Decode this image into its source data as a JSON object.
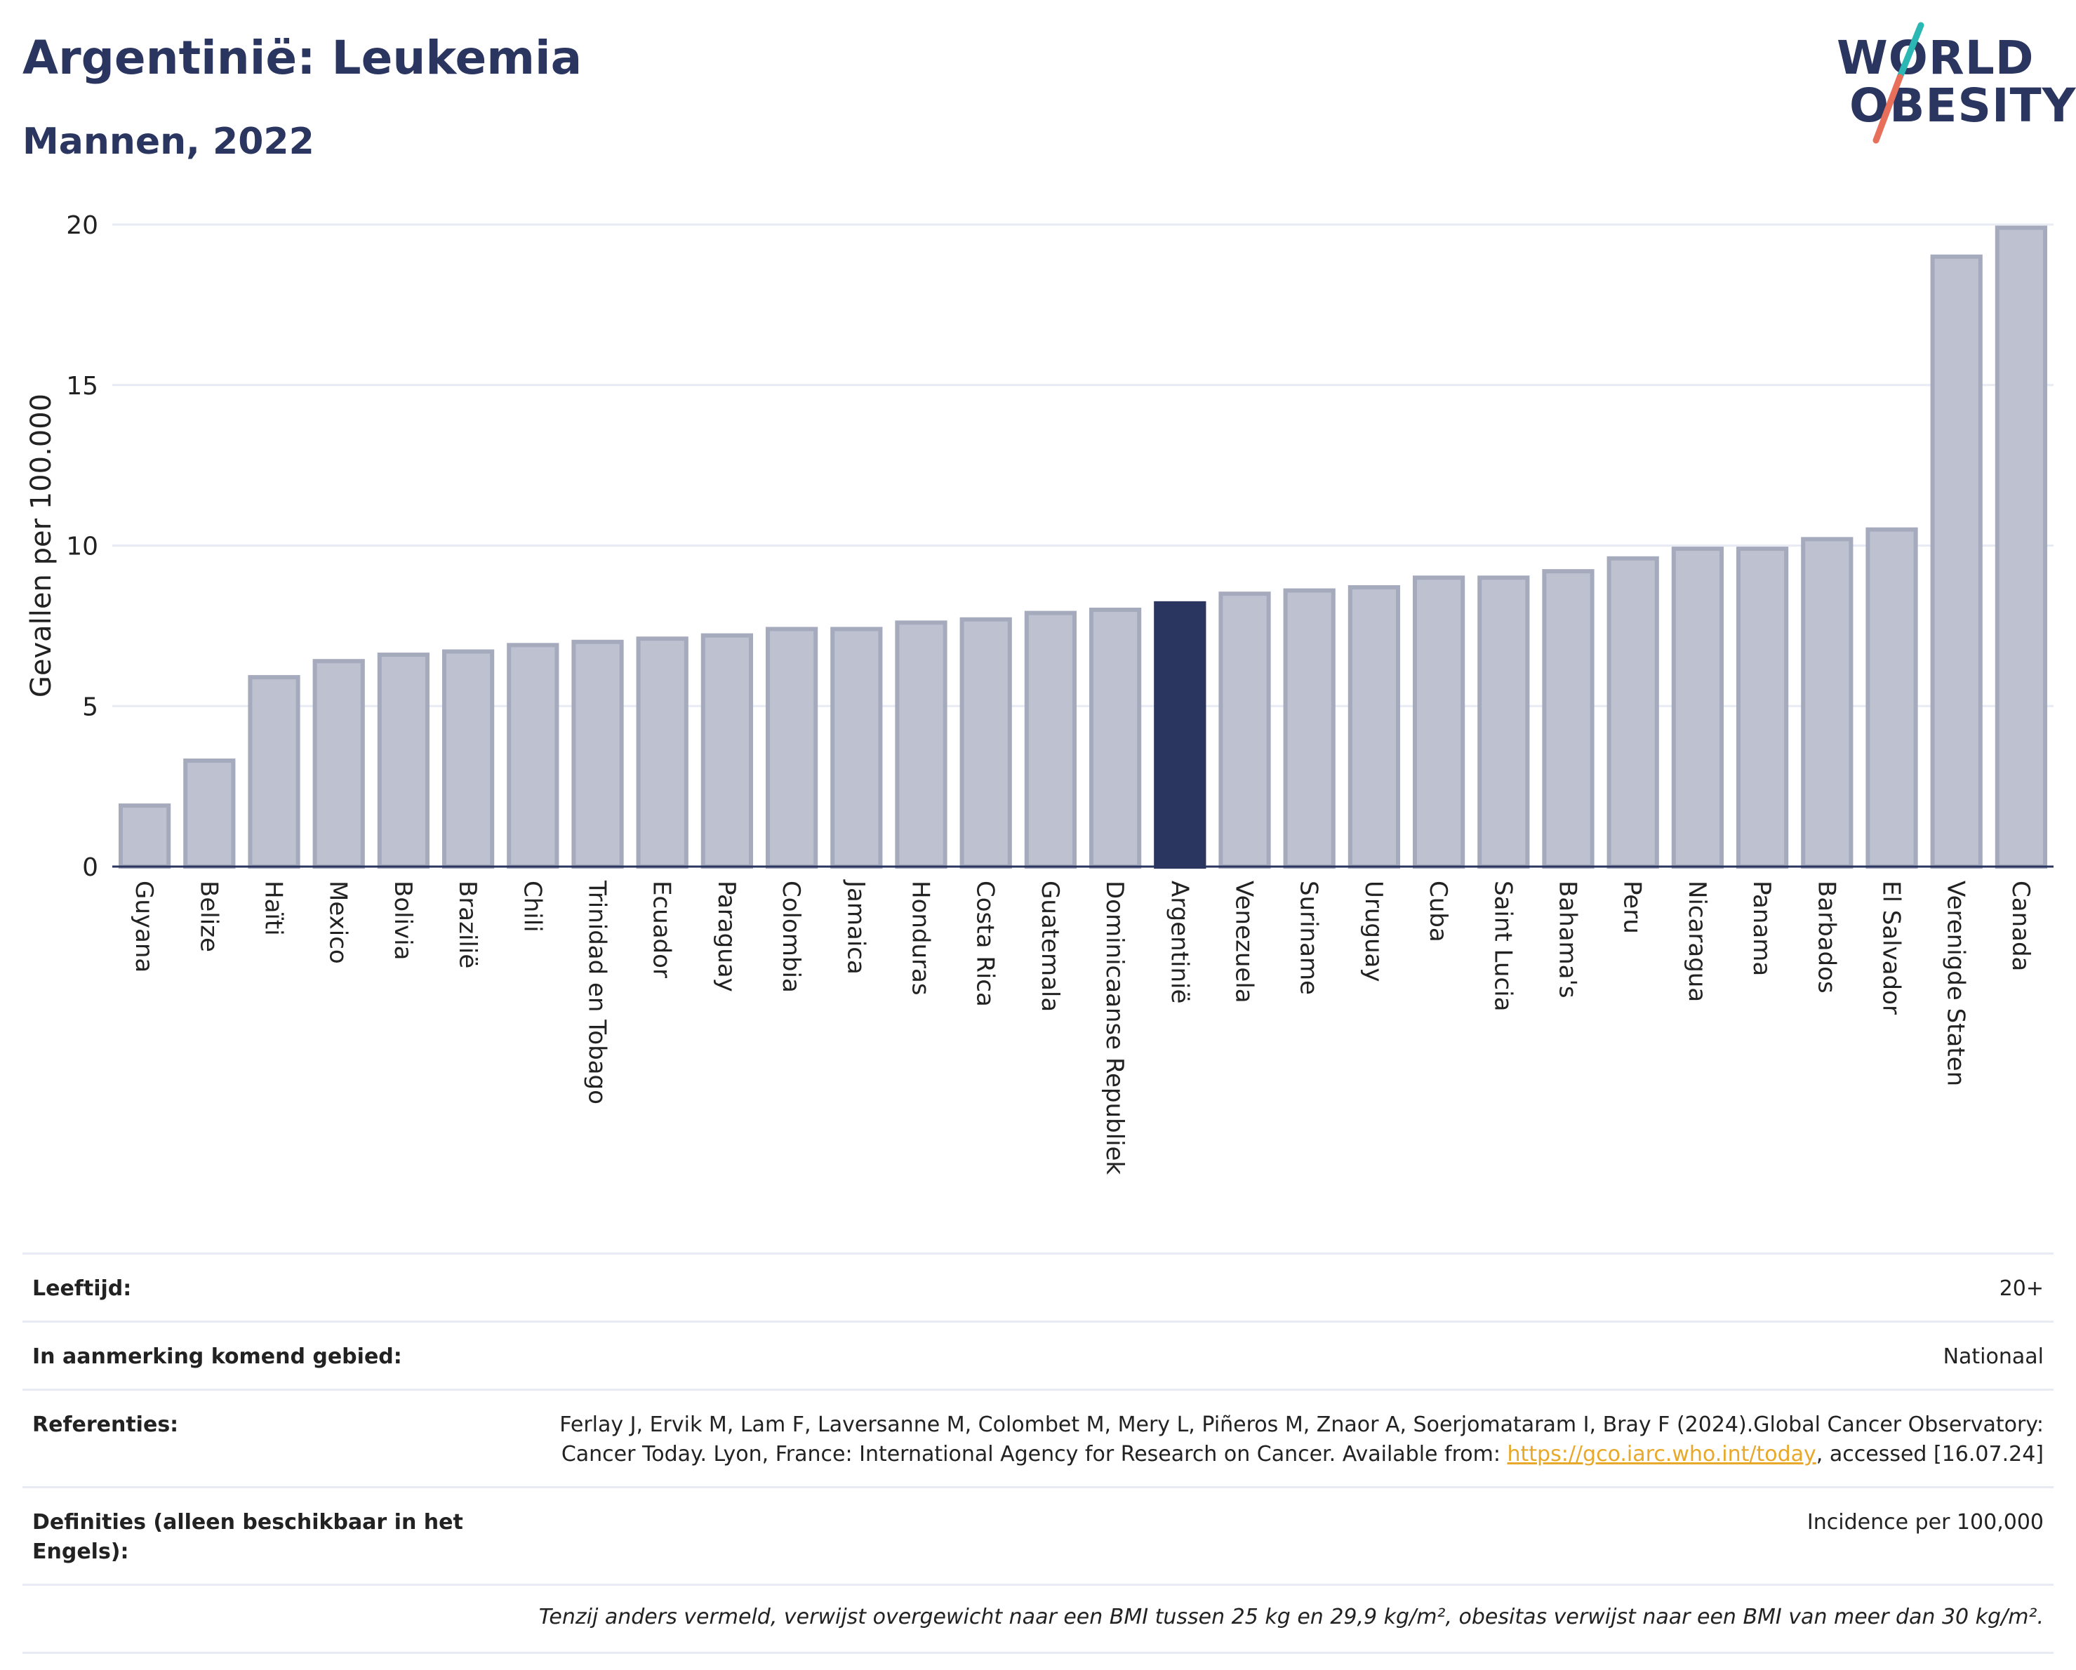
{
  "header": {
    "title": "Argentinië: Leukemia",
    "subtitle": "Mannen, 2022"
  },
  "logo": {
    "line1": "WORLD",
    "line2": "OBESITY",
    "colors": {
      "text": "#2a3560",
      "slash_top": "#2bb7b3",
      "slash_bottom": "#e8705a"
    }
  },
  "colors": {
    "bar_fill": "#bdc1d0",
    "bar_stroke": "#a5aabd",
    "highlight_fill": "#2a3560",
    "grid": "#e8ebf3",
    "axis": "#2a3560"
  },
  "chart_data": {
    "type": "bar",
    "ylabel": "Gevallen per 100.000",
    "ylim": [
      0,
      20
    ],
    "yticks": [
      0,
      5,
      10,
      15,
      20
    ],
    "grid": true,
    "highlight": "Argentinië",
    "categories": [
      "Guyana",
      "Belize",
      "Haïti",
      "Mexico",
      "Bolivia",
      "Brazilië",
      "Chili",
      "Trinidad en Tobago",
      "Ecuador",
      "Paraguay",
      "Colombia",
      "Jamaica",
      "Honduras",
      "Costa Rica",
      "Guatemala",
      "Dominicaanse Republiek",
      "Argentinië",
      "Venezuela",
      "Suriname",
      "Uruguay",
      "Cuba",
      "Saint Lucia",
      "Bahama's",
      "Peru",
      "Nicaragua",
      "Panama",
      "Barbados",
      "El Salvador",
      "Verenigde Staten",
      "Canada"
    ],
    "values": [
      1.9,
      3.3,
      5.9,
      6.4,
      6.6,
      6.7,
      6.9,
      7.0,
      7.1,
      7.2,
      7.4,
      7.4,
      7.6,
      7.7,
      7.9,
      8.0,
      8.2,
      8.5,
      8.6,
      8.7,
      9.0,
      9.0,
      9.2,
      9.6,
      9.9,
      9.9,
      10.2,
      10.5,
      19.0,
      19.9
    ]
  },
  "meta": {
    "rows": [
      {
        "label": "Leeftijd:",
        "value": "20+"
      },
      {
        "label": "In aanmerking komend gebied:",
        "value": "Nationaal"
      },
      {
        "label": "Definities (alleen beschikbaar in het Engels):",
        "value": "Incidence per 100,000"
      }
    ],
    "references": {
      "label": "Referenties:",
      "text_before": "Ferlay J, Ervik M, Lam F, Laversanne M, Colombet M, Mery L, Piñeros M, Znaor A, Soerjomataram I, Bray F (2024).Global Cancer Observatory: Cancer Today. Lyon, France: International Agency for Research on Cancer. Available from: ",
      "link": "https://gco.iarc.who.int/today",
      "text_after": ", accessed [16.07.24]"
    },
    "note": "Tenzij anders vermeld, verwijst overgewicht naar een BMI tussen 25 kg en 29,9 kg/m², obesitas verwijst naar een BMI van meer dan 30 kg/m²."
  }
}
